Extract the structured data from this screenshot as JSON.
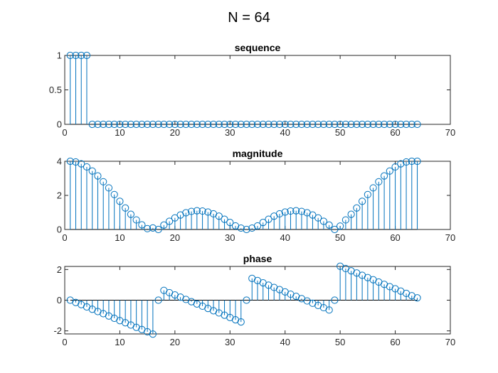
{
  "figure": {
    "title": "N = 64"
  },
  "colors": {
    "stem": "#0072BD",
    "axis": "#262626"
  },
  "chart_data": [
    {
      "type": "stem",
      "title": "sequence",
      "xlabel": "",
      "ylabel": "",
      "xlim": [
        0,
        70
      ],
      "ylim": [
        0,
        1
      ],
      "xticks": [
        0,
        10,
        20,
        30,
        40,
        50,
        60,
        70
      ],
      "yticks": [
        0,
        0.5,
        1
      ],
      "grid": false,
      "x": [
        1,
        2,
        3,
        4,
        5,
        6,
        7,
        8,
        9,
        10,
        11,
        12,
        13,
        14,
        15,
        16,
        17,
        18,
        19,
        20,
        21,
        22,
        23,
        24,
        25,
        26,
        27,
        28,
        29,
        30,
        31,
        32,
        33,
        34,
        35,
        36,
        37,
        38,
        39,
        40,
        41,
        42,
        43,
        44,
        45,
        46,
        47,
        48,
        49,
        50,
        51,
        52,
        53,
        54,
        55,
        56,
        57,
        58,
        59,
        60,
        61,
        62,
        63,
        64
      ],
      "values": [
        1,
        1,
        1,
        1,
        0,
        0,
        0,
        0,
        0,
        0,
        0,
        0,
        0,
        0,
        0,
        0,
        0,
        0,
        0,
        0,
        0,
        0,
        0,
        0,
        0,
        0,
        0,
        0,
        0,
        0,
        0,
        0,
        0,
        0,
        0,
        0,
        0,
        0,
        0,
        0,
        0,
        0,
        0,
        0,
        0,
        0,
        0,
        0,
        0,
        0,
        0,
        0,
        0,
        0,
        0,
        0,
        0,
        0,
        0,
        0,
        0,
        0,
        0,
        0
      ]
    },
    {
      "type": "stem",
      "title": "magnitude",
      "xlabel": "",
      "ylabel": "",
      "xlim": [
        0,
        70
      ],
      "ylim": [
        0,
        4
      ],
      "xticks": [
        0,
        10,
        20,
        30,
        40,
        50,
        60,
        70
      ],
      "yticks": [
        0,
        2,
        4
      ],
      "grid": false,
      "x": [
        1,
        2,
        3,
        4,
        5,
        6,
        7,
        8,
        9,
        10,
        11,
        12,
        13,
        14,
        15,
        16,
        17,
        18,
        19,
        20,
        21,
        22,
        23,
        24,
        25,
        26,
        27,
        28,
        29,
        30,
        31,
        32,
        33,
        34,
        35,
        36,
        37,
        38,
        39,
        40,
        41,
        42,
        43,
        44,
        45,
        46,
        47,
        48,
        49,
        50,
        51,
        52,
        53,
        54,
        55,
        56,
        57,
        58,
        59,
        60,
        61,
        62,
        63,
        64
      ],
      "values": [
        4.0,
        3.96,
        3.85,
        3.67,
        3.43,
        3.14,
        2.8,
        2.44,
        2.05,
        1.65,
        1.26,
        0.89,
        0.56,
        0.27,
        0.05,
        0.09,
        0.0,
        0.26,
        0.48,
        0.68,
        0.85,
        0.98,
        1.06,
        1.1,
        1.08,
        1.02,
        0.92,
        0.78,
        0.6,
        0.41,
        0.21,
        0.08,
        0.0,
        0.08,
        0.21,
        0.41,
        0.6,
        0.78,
        0.92,
        1.02,
        1.08,
        1.1,
        1.06,
        0.98,
        0.85,
        0.68,
        0.48,
        0.26,
        0.0,
        0.2,
        0.56,
        0.89,
        1.26,
        1.65,
        2.05,
        2.44,
        2.8,
        3.14,
        3.43,
        3.67,
        3.85,
        3.96,
        4.0,
        4.0
      ]
    },
    {
      "type": "stem",
      "title": "phase",
      "xlabel": "",
      "ylabel": "",
      "xlim": [
        0,
        70
      ],
      "ylim": [
        -2.2,
        2.2
      ],
      "xticks": [
        0,
        10,
        20,
        30,
        40,
        50,
        60,
        70
      ],
      "yticks": [
        -2,
        0,
        2
      ],
      "grid": false,
      "x": [
        1,
        2,
        3,
        4,
        5,
        6,
        7,
        8,
        9,
        10,
        11,
        12,
        13,
        14,
        15,
        16,
        17,
        18,
        19,
        20,
        21,
        22,
        23,
        24,
        25,
        26,
        27,
        28,
        29,
        30,
        31,
        32,
        33,
        34,
        35,
        36,
        37,
        38,
        39,
        40,
        41,
        42,
        43,
        44,
        45,
        46,
        47,
        48,
        49,
        50,
        51,
        52,
        53,
        54,
        55,
        56,
        57,
        58,
        59,
        60,
        61,
        62,
        63,
        64
      ],
      "values": [
        0.0,
        -0.15,
        -0.29,
        -0.44,
        -0.59,
        -0.74,
        -0.88,
        -1.03,
        -1.18,
        -1.33,
        -1.47,
        -1.62,
        -1.77,
        -1.91,
        -2.06,
        -2.21,
        0.0,
        0.64,
        0.49,
        0.34,
        0.2,
        0.05,
        -0.1,
        -0.25,
        -0.39,
        -0.54,
        -0.69,
        -0.83,
        -0.98,
        -1.13,
        -1.28,
        -1.42,
        0.0,
        1.42,
        1.28,
        1.13,
        0.98,
        0.83,
        0.69,
        0.54,
        0.39,
        0.25,
        0.1,
        -0.05,
        -0.2,
        -0.34,
        -0.49,
        -0.64,
        0.0,
        2.21,
        2.06,
        1.91,
        1.77,
        1.62,
        1.47,
        1.33,
        1.18,
        1.03,
        0.88,
        0.74,
        0.59,
        0.44,
        0.29,
        0.15
      ]
    }
  ]
}
